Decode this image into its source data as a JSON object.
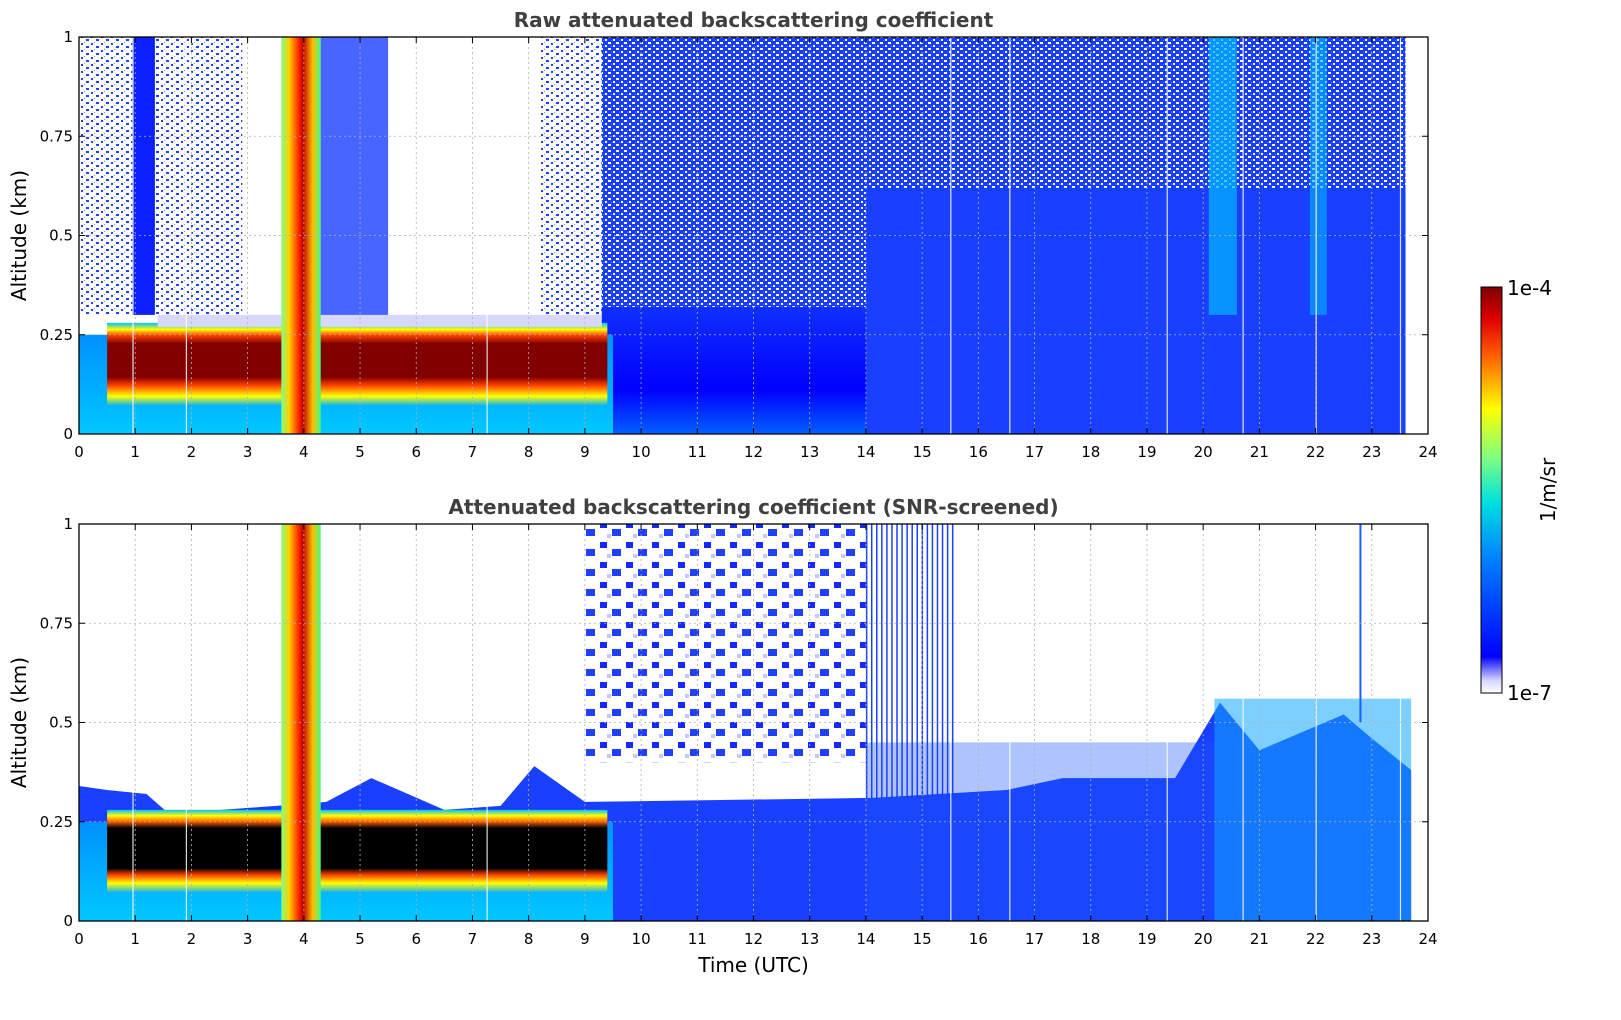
{
  "chart_data": [
    {
      "type": "heatmap",
      "title": "Raw attenuated backscattering coefficient",
      "xlabel": "",
      "ylabel": "Altitude (km)",
      "xlim": [
        0,
        24
      ],
      "ylim": [
        0,
        1
      ],
      "x_ticks": [
        "0",
        "1",
        "2",
        "3",
        "4",
        "5",
        "6",
        "7",
        "8",
        "9",
        "10",
        "11",
        "12",
        "13",
        "14",
        "15",
        "16",
        "17",
        "18",
        "19",
        "20",
        "21",
        "22",
        "23",
        "24"
      ],
      "y_ticks": [
        "0",
        "0.25",
        "0.5",
        "0.75",
        "1"
      ],
      "grid": true,
      "features": [
        {
          "desc": "fog/stratus layer",
          "time_start": 0.5,
          "time_end": 9.4,
          "alt_bottom": 0.08,
          "alt_top": 0.25
        },
        {
          "desc": "full-column precipitation signal",
          "time_start": 3.6,
          "time_end": 4.3,
          "alt_bottom": 0,
          "alt_top": 1
        }
      ]
    },
    {
      "type": "heatmap",
      "title": "Attenuated backscattering coefficient (SNR-screened)",
      "xlabel": "Time (UTC)",
      "ylabel": "Altitude (km)",
      "xlim": [
        0,
        24
      ],
      "ylim": [
        0,
        1
      ],
      "x_ticks": [
        "0",
        "1",
        "2",
        "3",
        "4",
        "5",
        "6",
        "7",
        "8",
        "9",
        "10",
        "11",
        "12",
        "13",
        "14",
        "15",
        "16",
        "17",
        "18",
        "19",
        "20",
        "21",
        "22",
        "23",
        "24"
      ],
      "y_ticks": [
        "0",
        "0.25",
        "0.5",
        "0.75",
        "1"
      ],
      "grid": true,
      "screened_top": [
        {
          "t": 0.0,
          "alt": 0.34
        },
        {
          "t": 0.5,
          "alt": 0.33
        },
        {
          "t": 1.2,
          "alt": 0.32
        },
        {
          "t": 1.6,
          "alt": 0.27
        },
        {
          "t": 3.5,
          "alt": 0.29
        },
        {
          "t": 4.4,
          "alt": 0.3
        },
        {
          "t": 5.2,
          "alt": 0.36
        },
        {
          "t": 6.5,
          "alt": 0.28
        },
        {
          "t": 7.5,
          "alt": 0.29
        },
        {
          "t": 8.1,
          "alt": 0.39
        },
        {
          "t": 9.0,
          "alt": 0.3
        },
        {
          "t": 14.1,
          "alt": 0.31
        },
        {
          "t": 16.5,
          "alt": 0.33
        },
        {
          "t": 17.5,
          "alt": 0.36
        },
        {
          "t": 19.5,
          "alt": 0.36
        },
        {
          "t": 20.3,
          "alt": 0.55
        },
        {
          "t": 21.0,
          "alt": 0.43
        },
        {
          "t": 22.5,
          "alt": 0.52
        },
        {
          "t": 23.0,
          "alt": 0.46
        },
        {
          "t": 23.7,
          "alt": 0.38
        }
      ]
    }
  ],
  "colorbar": {
    "label": "1/m/sr",
    "max_label": "1e-4",
    "min_label": "1e-7",
    "colormap": "jet"
  }
}
